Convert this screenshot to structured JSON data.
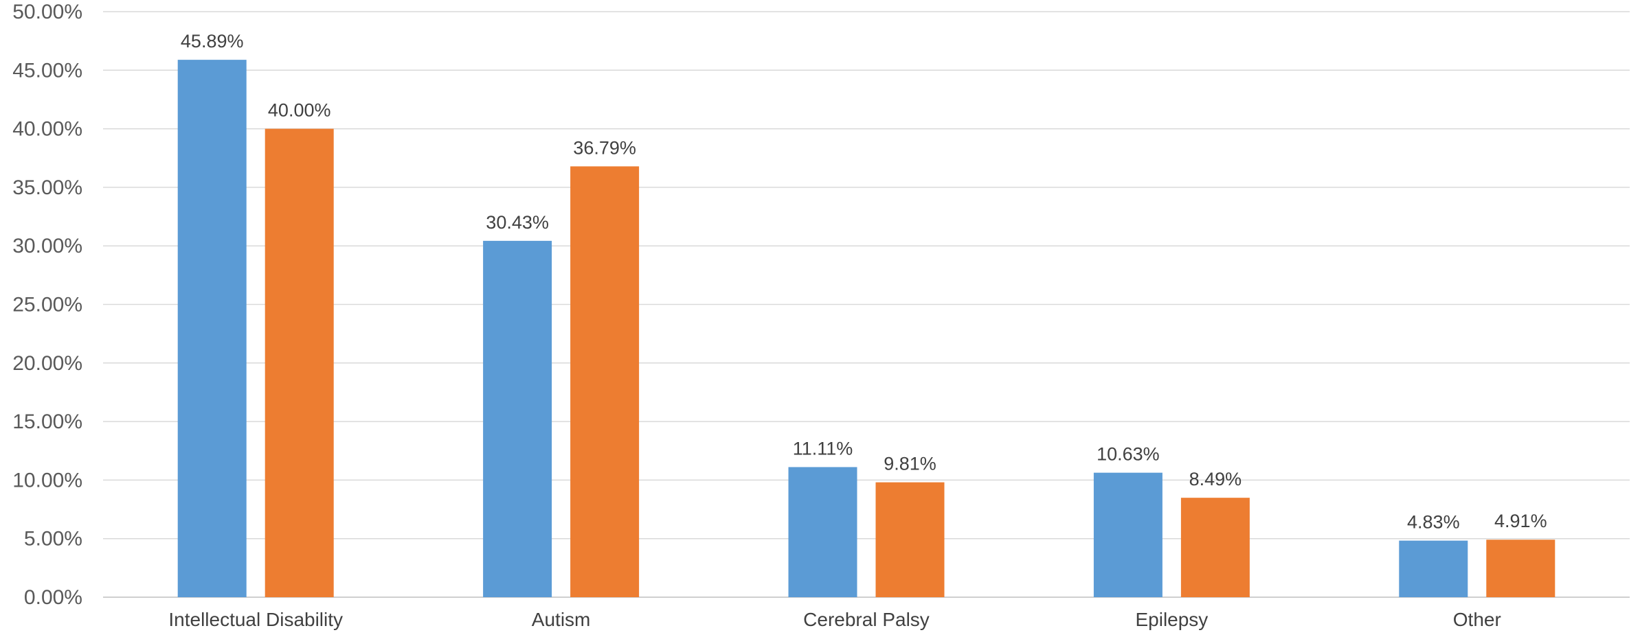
{
  "chart_data": {
    "type": "bar",
    "title": "",
    "xlabel": "",
    "ylabel": "",
    "ylim": [
      0,
      50
    ],
    "y_ticks": [
      "0.00%",
      "5.00%",
      "10.00%",
      "15.00%",
      "20.00%",
      "25.00%",
      "30.00%",
      "35.00%",
      "40.00%",
      "45.00%",
      "50.00%"
    ],
    "grid": true,
    "legend": "none",
    "categories": [
      "Intellectual Disability",
      "Autism",
      "Cerebral Palsy",
      "Epilepsy",
      "Other"
    ],
    "series": [
      {
        "color": "#5b9bd5",
        "values": [
          45.89,
          30.43,
          11.11,
          10.63,
          4.83
        ],
        "labels": [
          "45.89%",
          "30.43%",
          "11.11%",
          "10.63%",
          "4.83%"
        ]
      },
      {
        "color": "#ed7d31",
        "values": [
          40.0,
          36.79,
          9.81,
          8.49,
          4.91
        ],
        "labels": [
          "40.00%",
          "36.79%",
          "9.81%",
          "8.49%",
          "4.91%"
        ]
      }
    ]
  }
}
